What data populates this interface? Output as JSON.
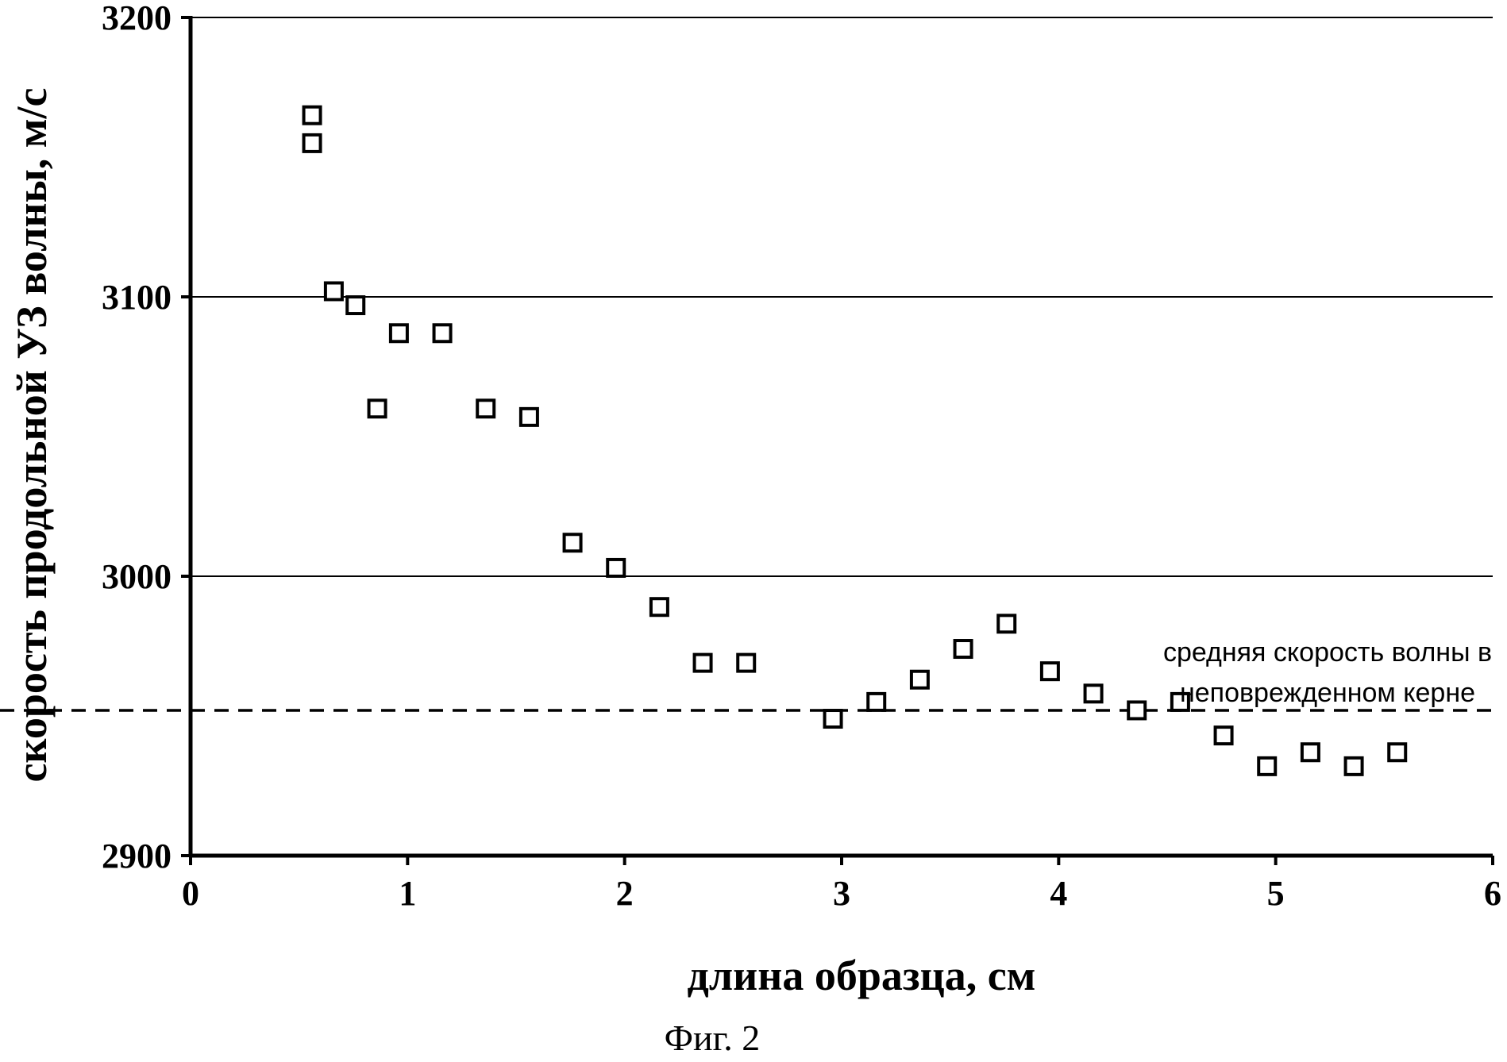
{
  "chart_data": {
    "type": "scatter",
    "title": "",
    "xlabel": "длина образца, см",
    "ylabel": "скорость продольной УЗ волны, м/с",
    "xlim": [
      0,
      6
    ],
    "ylim": [
      2900,
      3200
    ],
    "x_ticks": [
      "0",
      "1",
      "2",
      "3",
      "4",
      "5",
      "6"
    ],
    "y_ticks": [
      "2900",
      "3000",
      "3100",
      "3200"
    ],
    "y_tick_values": [
      2900,
      3000,
      3100,
      3200
    ],
    "x_tick_values": [
      0,
      1,
      2,
      3,
      4,
      5,
      6
    ],
    "grid": "horizontal",
    "marker": "open-square",
    "points": [
      [
        0.56,
        3165
      ],
      [
        0.56,
        3155
      ],
      [
        0.66,
        3102
      ],
      [
        0.76,
        3097
      ],
      [
        0.86,
        3060
      ],
      [
        0.96,
        3087
      ],
      [
        1.16,
        3087
      ],
      [
        1.36,
        3060
      ],
      [
        1.56,
        3057
      ],
      [
        1.76,
        3012
      ],
      [
        1.96,
        3003
      ],
      [
        2.16,
        2989
      ],
      [
        2.36,
        2969
      ],
      [
        2.56,
        2969
      ],
      [
        2.96,
        2949
      ],
      [
        3.16,
        2955
      ],
      [
        3.36,
        2963
      ],
      [
        3.56,
        2974
      ],
      [
        3.76,
        2983
      ],
      [
        3.96,
        2966
      ],
      [
        4.16,
        2958
      ],
      [
        4.36,
        2952
      ],
      [
        4.56,
        2955
      ],
      [
        4.76,
        2943
      ],
      [
        4.96,
        2932
      ],
      [
        5.16,
        2937
      ],
      [
        5.36,
        2932
      ],
      [
        5.56,
        2937
      ]
    ],
    "reference_line": {
      "y": 2952,
      "style": "dashed",
      "label_line1": "средняя скорость волны в",
      "label_line2": "неповрежденном керне"
    }
  },
  "caption": "Фиг. 2"
}
